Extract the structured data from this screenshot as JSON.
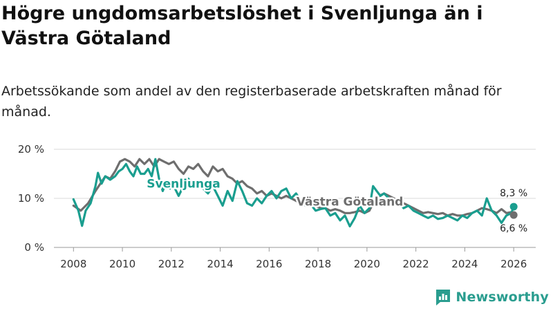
{
  "title": "Högre ungdomsarbetslöshet i Svenljunga än i Västra Götaland",
  "subtitle": "Arbetssökande som andel av den registerbaserade arbetskraften månad för månad.",
  "brand": "Newsworthy",
  "chart_data": {
    "type": "line",
    "title": "Högre ungdomsarbetslöshet i Svenljunga än i Västra Götaland",
    "xlabel": "",
    "ylabel": "",
    "xlim": [
      2007.2,
      2026.9
    ],
    "ylim": [
      0,
      20
    ],
    "y_ticks": [
      0,
      10,
      20
    ],
    "y_tick_labels": [
      "0 %",
      "10 %",
      "20 %"
    ],
    "x_ticks": [
      2008,
      2010,
      2012,
      2014,
      2016,
      2018,
      2020,
      2022,
      2024,
      2026
    ],
    "x_tick_labels": [
      "2008",
      "2010",
      "2012",
      "2014",
      "2016",
      "2018",
      "2020",
      "2022",
      "2024",
      "2026"
    ],
    "grid": true,
    "series": [
      {
        "name": "Svenljunga",
        "color": "#1a9e8f",
        "label_x": 2012.5,
        "label_y": 12.2,
        "end_value": 8.3,
        "end_label": "8,3 %",
        "x": [
          2008.0,
          2008.2,
          2008.35,
          2008.5,
          2008.7,
          2008.9,
          2009.0,
          2009.15,
          2009.3,
          2009.5,
          2009.7,
          2009.85,
          2010.0,
          2010.15,
          2010.3,
          2010.45,
          2010.6,
          2010.75,
          2010.9,
          2011.05,
          2011.2,
          2011.35,
          2011.5,
          2011.65,
          2011.8,
          2011.95,
          2012.1,
          2012.3,
          2012.5,
          2012.7,
          2012.9,
          2013.1,
          2013.3,
          2013.5,
          2013.7,
          2013.9,
          2014.1,
          2014.3,
          2014.5,
          2014.7,
          2014.9,
          2015.1,
          2015.3,
          2015.5,
          2015.7,
          2015.9,
          2016.1,
          2016.3,
          2016.5,
          2016.7,
          2016.9,
          2017.1,
          2017.3,
          2017.5,
          2017.7,
          2017.9,
          2018.1,
          2018.3,
          2018.5,
          2018.7,
          2018.9,
          2019.1,
          2019.3,
          2019.5,
          2019.7,
          2019.9,
          2020.1,
          2020.25,
          2020.4,
          2020.55,
          2020.7,
          2020.9,
          2021.1,
          2021.3,
          2021.5,
          2021.7,
          2021.9,
          2022.1,
          2022.3,
          2022.5,
          2022.7,
          2022.9,
          2023.1,
          2023.3,
          2023.5,
          2023.7,
          2023.9,
          2024.1,
          2024.3,
          2024.5,
          2024.7,
          2024.9,
          2025.1,
          2025.3,
          2025.5,
          2025.7,
          2025.9,
          2026.0
        ],
        "values": [
          9.8,
          7.5,
          4.4,
          7.5,
          9.0,
          12.5,
          15.2,
          13.0,
          14.5,
          13.8,
          14.5,
          15.5,
          16.0,
          17.0,
          15.5,
          14.5,
          16.5,
          15.0,
          15.0,
          16.0,
          14.5,
          18.0,
          14.0,
          11.5,
          13.5,
          12.0,
          12.5,
          10.5,
          12.5,
          14.0,
          12.5,
          13.5,
          12.0,
          11.0,
          12.5,
          10.5,
          8.5,
          11.5,
          9.5,
          13.5,
          11.5,
          9.0,
          8.5,
          10.0,
          9.0,
          10.5,
          11.5,
          10.0,
          11.5,
          12.0,
          10.0,
          11.0,
          9.5,
          8.5,
          8.8,
          7.5,
          7.8,
          8.0,
          6.5,
          7.0,
          5.5,
          6.5,
          4.3,
          6.0,
          8.5,
          7.0,
          8.0,
          12.5,
          11.5,
          10.5,
          11.0,
          10.0,
          9.5,
          9.5,
          8.0,
          8.5,
          7.5,
          7.0,
          6.5,
          6.0,
          6.5,
          5.8,
          6.0,
          6.5,
          6.0,
          5.5,
          6.5,
          6.0,
          7.0,
          7.5,
          6.5,
          10.0,
          7.5,
          6.5,
          5.0,
          6.5,
          7.0,
          8.3
        ]
      },
      {
        "name": "Västra Götaland",
        "color": "#6e6e6e",
        "label_x": 2019.3,
        "label_y": 8.5,
        "end_value": 6.6,
        "end_label": "6,6 %",
        "x": [
          2008.0,
          2008.3,
          2008.6,
          2008.9,
          2009.1,
          2009.3,
          2009.5,
          2009.7,
          2009.9,
          2010.1,
          2010.3,
          2010.5,
          2010.7,
          2010.9,
          2011.1,
          2011.3,
          2011.5,
          2011.7,
          2011.9,
          2012.1,
          2012.3,
          2012.5,
          2012.7,
          2012.9,
          2013.1,
          2013.3,
          2013.5,
          2013.7,
          2013.9,
          2014.1,
          2014.3,
          2014.5,
          2014.7,
          2014.9,
          2015.1,
          2015.3,
          2015.5,
          2015.7,
          2015.9,
          2016.1,
          2016.3,
          2016.5,
          2016.7,
          2016.9,
          2017.1,
          2017.3,
          2017.5,
          2017.7,
          2017.9,
          2018.1,
          2018.3,
          2018.5,
          2018.7,
          2018.9,
          2019.1,
          2019.3,
          2019.5,
          2019.7,
          2019.9,
          2020.1,
          2020.3,
          2020.5,
          2020.7,
          2020.9,
          2021.1,
          2021.3,
          2021.5,
          2021.7,
          2021.9,
          2022.1,
          2022.3,
          2022.5,
          2022.7,
          2022.9,
          2023.1,
          2023.3,
          2023.5,
          2023.7,
          2023.9,
          2024.1,
          2024.3,
          2024.5,
          2024.7,
          2024.9,
          2025.1,
          2025.3,
          2025.5,
          2025.7,
          2025.9,
          2026.0
        ],
        "values": [
          8.5,
          7.5,
          9.0,
          11.5,
          13.0,
          14.5,
          14.0,
          15.5,
          17.5,
          18.0,
          17.5,
          16.5,
          18.0,
          17.0,
          18.0,
          16.5,
          18.0,
          17.5,
          17.0,
          17.5,
          16.0,
          15.0,
          16.5,
          16.0,
          17.0,
          15.5,
          14.5,
          16.5,
          15.5,
          16.0,
          14.5,
          14.0,
          13.0,
          13.5,
          12.5,
          12.0,
          11.0,
          11.5,
          10.5,
          11.0,
          10.5,
          10.0,
          10.5,
          10.0,
          9.5,
          9.0,
          8.5,
          8.8,
          8.5,
          8.0,
          8.0,
          7.5,
          7.8,
          7.5,
          7.0,
          7.0,
          7.2,
          7.5,
          7.0,
          7.5,
          9.5,
          10.5,
          11.0,
          10.5,
          10.0,
          9.5,
          9.0,
          8.5,
          8.0,
          7.5,
          7.0,
          7.2,
          7.0,
          6.8,
          7.0,
          6.5,
          6.8,
          6.5,
          6.5,
          6.8,
          7.0,
          7.5,
          8.0,
          7.8,
          7.5,
          7.0,
          7.8,
          7.0,
          7.2,
          6.6
        ]
      }
    ]
  }
}
